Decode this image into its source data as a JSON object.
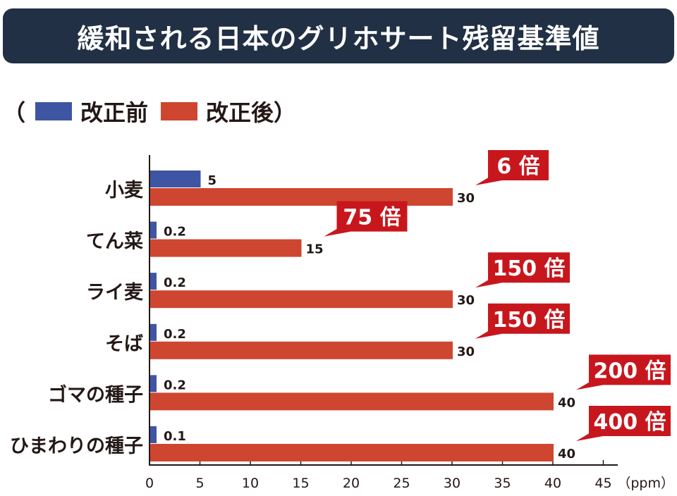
{
  "title": "緩和される日本のグリホサート残留基準値",
  "legend": {
    "open_paren": "（",
    "close_paren": "）",
    "items": [
      {
        "label": "改正前",
        "color": "#3d55a3"
      },
      {
        "label": "改正後",
        "color": "#cf4630"
      }
    ]
  },
  "chart_data": {
    "type": "bar",
    "orientation": "horizontal",
    "title": "緩和される日本のグリホサート残留基準値",
    "categories": [
      "小麦",
      "てん菜",
      "ライ麦",
      "そば",
      "ゴマの種子",
      "ひまわりの種子"
    ],
    "series": [
      {
        "name": "改正前",
        "color": "#3d55a3",
        "values": [
          5,
          0.2,
          0.2,
          0.2,
          0.2,
          0.1
        ],
        "labels": [
          "5",
          "0.2",
          "0.2",
          "0.2",
          "0.2",
          "0.1"
        ]
      },
      {
        "name": "改正後",
        "color": "#cf4630",
        "values": [
          30,
          15,
          30,
          30,
          40,
          40
        ],
        "labels": [
          "30",
          "15",
          "30",
          "30",
          "40",
          "40"
        ]
      }
    ],
    "annotations": [
      "6 倍",
      "75 倍",
      "150 倍",
      "150 倍",
      "200 倍",
      "400 倍"
    ],
    "annotation_color": "#c8161d",
    "xlabel": "（ppm）",
    "xlim": [
      0,
      45
    ],
    "xticks": [
      "0",
      "5",
      "10",
      "15",
      "20",
      "25",
      "30",
      "35",
      "40",
      "45"
    ],
    "xtick_values": [
      0,
      5,
      10,
      15,
      20,
      25,
      30,
      35,
      40,
      45
    ],
    "grid": false,
    "legend_position": "top-left"
  }
}
